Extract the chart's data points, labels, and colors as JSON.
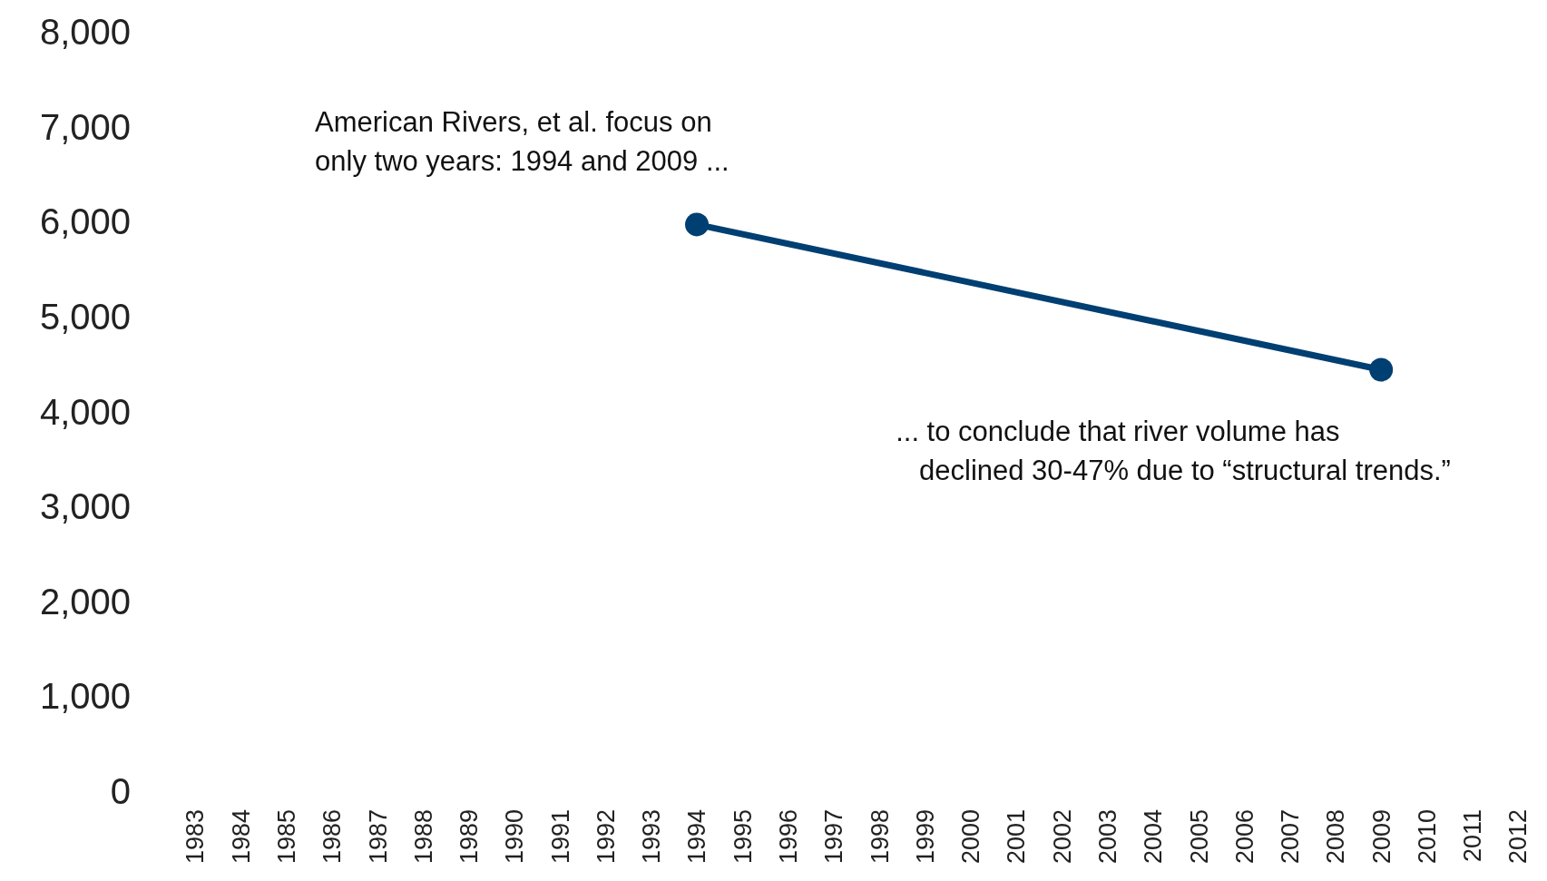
{
  "chart_data": {
    "type": "line",
    "x": [
      1994,
      2009
    ],
    "xlim": [
      1983,
      2012
    ],
    "xticks": [
      1983,
      1984,
      1985,
      1986,
      1987,
      1988,
      1989,
      1990,
      1991,
      1992,
      1993,
      1994,
      1995,
      1996,
      1997,
      1998,
      1999,
      2000,
      2001,
      2002,
      2003,
      2004,
      2005,
      2006,
      2007,
      2008,
      2009,
      2010,
      2011,
      2012
    ],
    "ylim": [
      0,
      8000
    ],
    "yticks": [
      {
        "value": 0,
        "label": "0"
      },
      {
        "value": 1000,
        "label": "1,000"
      },
      {
        "value": 2000,
        "label": "2,000"
      },
      {
        "value": 3000,
        "label": "3,000"
      },
      {
        "value": 4000,
        "label": "4,000"
      },
      {
        "value": 5000,
        "label": "5,000"
      },
      {
        "value": 6000,
        "label": "6,000"
      },
      {
        "value": 7000,
        "label": "7,000"
      },
      {
        "value": 8000,
        "label": "8,000"
      }
    ],
    "series": [
      {
        "color": "#003f72",
        "values": [
          5970,
          4440
        ]
      }
    ],
    "marker": "circle",
    "grid": false,
    "annotations": [
      {
        "text": "American Rivers, et al. focus on\nonly two years: 1994 and 2009 ...",
        "x": 1994,
        "y": 5970
      },
      {
        "text": "... to conclude that river volume has\n   declined 30-47% due to “structural trends.”",
        "x": 2009,
        "y": 4440
      }
    ]
  }
}
